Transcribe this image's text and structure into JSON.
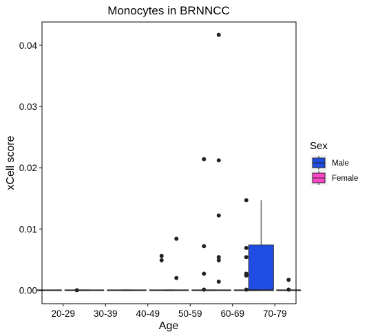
{
  "chart_data": {
    "type": "box",
    "title": "Monocytes in BRNNCC",
    "xlabel": "Age",
    "ylabel": "xCell score",
    "ylim": [
      -0.0022,
      0.0438
    ],
    "yticks": [
      0.0,
      0.01,
      0.02,
      0.03,
      0.04
    ],
    "ytick_labels": [
      "0.00",
      "0.01",
      "0.02",
      "0.03",
      "0.04"
    ],
    "categories": [
      "20-29",
      "30-39",
      "40-49",
      "50-59",
      "60-69",
      "70-79"
    ],
    "grid": false,
    "legend": {
      "title": "Sex",
      "placement": "right",
      "entries": [
        {
          "label": "Male",
          "color": "#1f4de2"
        },
        {
          "label": "Female",
          "color": "#ff45c9"
        }
      ]
    },
    "series": [
      {
        "name": "Male",
        "color": "#1f4de2",
        "boxes": [
          {
            "category": "20-29",
            "min": 0,
            "q1": 0,
            "median": 0,
            "q3": 0,
            "max": 0,
            "outliers": []
          },
          {
            "category": "30-39",
            "min": 0,
            "q1": 0,
            "median": 0,
            "q3": 0,
            "max": 0,
            "outliers": []
          },
          {
            "category": "40-49",
            "min": 0,
            "q1": 0,
            "median": 0,
            "q3": 0,
            "max": 0,
            "outliers": []
          },
          {
            "category": "50-59",
            "min": 0,
            "q1": 0,
            "median": 0,
            "q3": 0,
            "max": 0,
            "outliers": [
              0.0084,
              0.002
            ]
          },
          {
            "category": "60-69",
            "min": 0,
            "q1": 0,
            "median": 0,
            "q3": 0,
            "max": 0,
            "outliers": [
              0.0417,
              0.0212,
              0.0122,
              0.0054,
              0.0049,
              0.0014
            ]
          },
          {
            "category": "70-79",
            "min": 0,
            "q1": 0,
            "median": 0,
            "q3": 0.0074,
            "max": 0.0147,
            "outliers": []
          }
        ]
      },
      {
        "name": "Female",
        "color": "#ff45c9",
        "boxes": [
          {
            "category": "20-29",
            "min": 0,
            "q1": 0,
            "median": 0,
            "q3": 0,
            "max": 0,
            "outliers": [
              0
            ]
          },
          {
            "category": "30-39",
            "min": 0,
            "q1": 0,
            "median": 0,
            "q3": 0,
            "max": 0,
            "outliers": []
          },
          {
            "category": "40-49",
            "min": 0,
            "q1": 0,
            "median": 0,
            "q3": 0,
            "max": 0,
            "outliers": [
              0.0056,
              0.0049
            ]
          },
          {
            "category": "50-59",
            "min": 0,
            "q1": 0,
            "median": 0,
            "q3": 0,
            "max": 0,
            "outliers": [
              0.0214,
              0.0072,
              0.0027,
              0.0001
            ]
          },
          {
            "category": "60-69",
            "min": 0,
            "q1": 0,
            "median": 0,
            "q3": 0,
            "max": 0,
            "outliers": [
              0.0147,
              0.0069,
              0.0054,
              0.0027,
              0.0024,
              0.0001
            ]
          },
          {
            "category": "70-79",
            "min": 0,
            "q1": 0,
            "median": 0,
            "q3": 0,
            "max": 0,
            "outliers": [
              0.0017,
              0.0001
            ]
          }
        ]
      }
    ]
  }
}
